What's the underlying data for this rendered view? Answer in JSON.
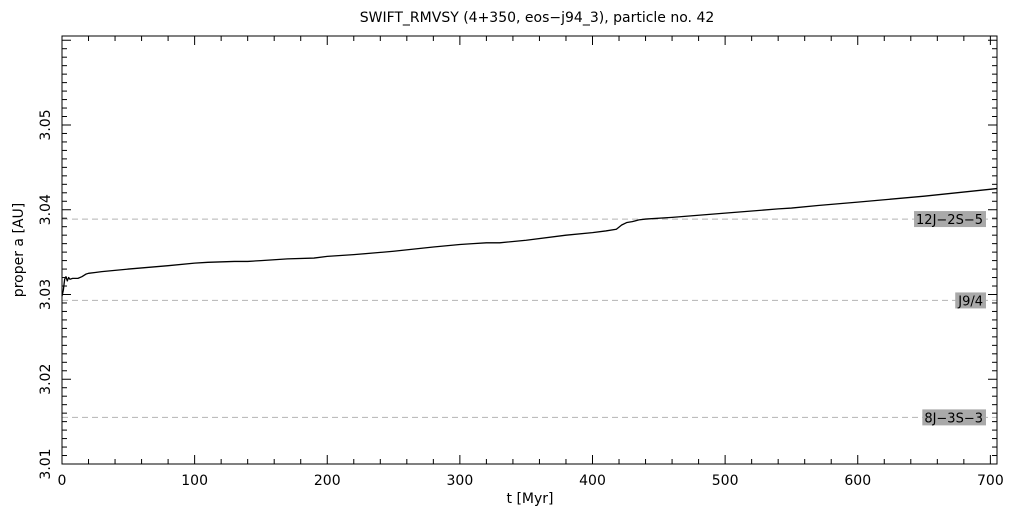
{
  "chart_data": {
    "type": "line",
    "title": "SWIFT_RMVSY (4+350, eos−j94_3), particle no. 42",
    "xlabel": "t [Myr]",
    "ylabel": "proper a [AU]",
    "xlim": [
      0,
      705
    ],
    "ylim": [
      3.01,
      3.0605
    ],
    "xticks": [
      0,
      100,
      200,
      300,
      400,
      500,
      600,
      700
    ],
    "xtick_labels": [
      "0",
      "100",
      "200",
      "300",
      "400",
      "500",
      "600",
      "700"
    ],
    "yticks": [
      3.01,
      3.02,
      3.03,
      3.04,
      3.05
    ],
    "ytick_labels": [
      "3.01",
      "3.02",
      "3.03",
      "3.04",
      "3.05"
    ],
    "grid": false,
    "series": [
      {
        "color": "#000000",
        "x": [
          0,
          1,
          2,
          3,
          4,
          5,
          6,
          8,
          12,
          15,
          18,
          20,
          25,
          30,
          50,
          80,
          100,
          110,
          130,
          140,
          150,
          160,
          170,
          190,
          200,
          210,
          220,
          250,
          280,
          300,
          310,
          320,
          330,
          350,
          380,
          400,
          410,
          418,
          422,
          426,
          430,
          435,
          440,
          460,
          500,
          540,
          550,
          570,
          600,
          650,
          705
        ],
        "y": [
          3.0298,
          3.0305,
          3.0318,
          3.0321,
          3.0316,
          3.032,
          3.0318,
          3.0319,
          3.0319,
          3.0321,
          3.0324,
          3.0325,
          3.0326,
          3.0327,
          3.033,
          3.0334,
          3.0337,
          3.0338,
          3.0339,
          3.0339,
          3.034,
          3.0341,
          3.0342,
          3.0343,
          3.0345,
          3.0346,
          3.0347,
          3.0351,
          3.0356,
          3.0359,
          3.036,
          3.0361,
          3.0361,
          3.0364,
          3.037,
          3.0373,
          3.0375,
          3.0377,
          3.0382,
          3.0385,
          3.0386,
          3.0388,
          3.0389,
          3.0391,
          3.0396,
          3.0401,
          3.0402,
          3.0405,
          3.0409,
          3.0416,
          3.0425
        ]
      }
    ],
    "resonances": [
      {
        "label": "12J−2S−5",
        "a": 3.0389
      },
      {
        "label": "J9/4",
        "a": 3.0293
      },
      {
        "label": "8J−3S−3",
        "a": 3.0155
      }
    ],
    "resonance_line_color": "#b4b4b4",
    "resonance_label_bg": "#a9a9a9"
  }
}
